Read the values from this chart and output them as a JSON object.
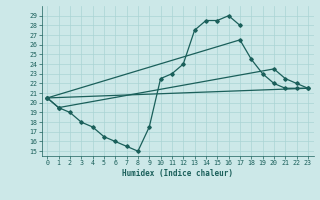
{
  "xlabel": "Humidex (Indice chaleur)",
  "bg_color": "#cce8e8",
  "grid_color": "#aad4d4",
  "line_color": "#1a5f5a",
  "xlim": [
    -0.5,
    23.5
  ],
  "ylim": [
    14.5,
    30.0
  ],
  "xticks": [
    0,
    1,
    2,
    3,
    4,
    5,
    6,
    7,
    8,
    9,
    10,
    11,
    12,
    13,
    14,
    15,
    16,
    17,
    18,
    19,
    20,
    21,
    22,
    23
  ],
  "yticks": [
    15,
    16,
    17,
    18,
    19,
    20,
    21,
    22,
    23,
    24,
    25,
    26,
    27,
    28,
    29
  ],
  "line1_x": [
    0,
    1,
    2,
    3,
    4,
    5,
    6,
    7,
    8,
    9,
    10,
    11,
    12,
    13,
    14,
    15,
    16,
    17
  ],
  "line1_y": [
    20.5,
    19.5,
    19.0,
    18.0,
    17.5,
    16.5,
    16.0,
    15.5,
    15.0,
    17.5,
    22.5,
    23.0,
    24.0,
    27.5,
    28.5,
    28.5,
    29.0,
    28.0
  ],
  "line2_x": [
    0,
    17,
    18,
    19,
    20,
    21,
    22,
    23
  ],
  "line2_y": [
    20.5,
    26.5,
    24.5,
    23.0,
    22.0,
    21.5,
    21.5,
    21.5
  ],
  "line3_x": [
    0,
    1,
    20,
    21,
    22,
    23
  ],
  "line3_y": [
    20.5,
    19.5,
    23.5,
    22.5,
    22.0,
    21.5
  ],
  "line4_x": [
    0,
    23
  ],
  "line4_y": [
    20.5,
    21.5
  ]
}
